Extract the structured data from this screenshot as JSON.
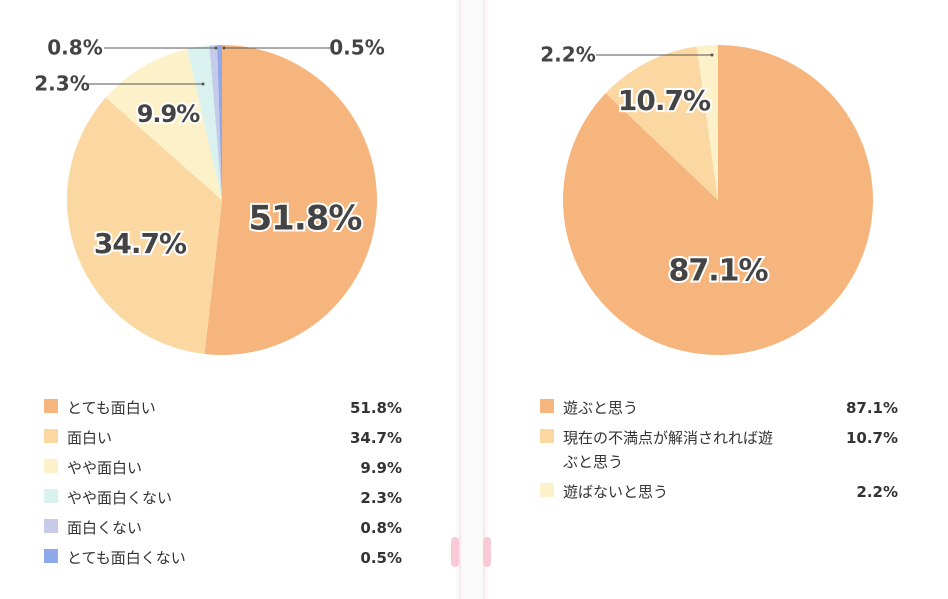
{
  "chart_data": [
    {
      "type": "pie",
      "categories": [
        "とても面白い",
        "面白い",
        "やや面白い",
        "やや面白くない",
        "面白くない",
        "とても面白くない"
      ],
      "values": [
        51.8,
        34.7,
        9.9,
        2.3,
        0.8,
        0.5
      ],
      "value_labels": [
        "51.8%",
        "34.7%",
        "9.9%",
        "2.3%",
        "0.8%",
        "0.5%"
      ],
      "colors": [
        "#f6b57d",
        "#fbd8a1",
        "#fdf1c9",
        "#d9f2ef",
        "#c5cbe9",
        "#8ea8ea"
      ]
    },
    {
      "type": "pie",
      "categories": [
        "遊ぶと思う",
        "現在の不満点が解消されれば遊ぶと思う",
        "遊ばないと思う"
      ],
      "values": [
        87.1,
        10.7,
        2.2
      ],
      "value_labels": [
        "87.1%",
        "10.7%",
        "2.2%"
      ],
      "colors": [
        "#f6b57d",
        "#fbd8a1",
        "#fdf1c9"
      ]
    }
  ]
}
